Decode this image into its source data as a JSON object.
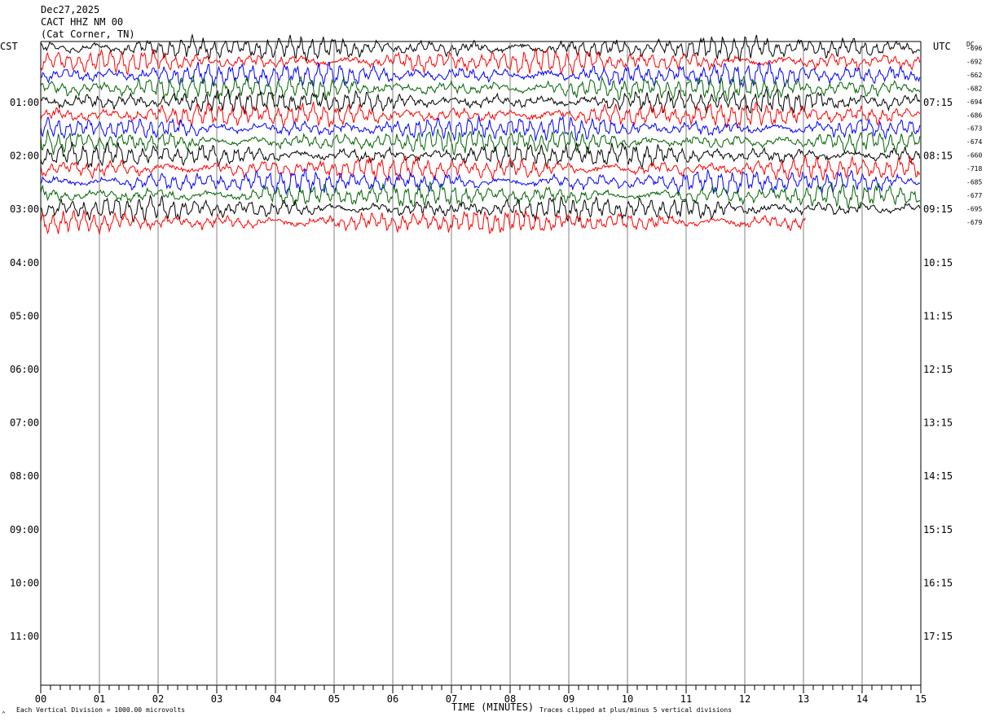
{
  "header": {
    "date": "Dec27,2025",
    "station": "CACT HHZ NM 00",
    "location": "(Cat Corner, TN)"
  },
  "left_tz": "CST",
  "right_tz": "UTC",
  "dc_label": "DC",
  "footer": {
    "left_note": "Each Vertical Division = 1000.00 microvolts",
    "x_title": "TIME (MINUTES)",
    "right_note": "Traces clipped at plus/minus 5 vertical divisions",
    "corner_mark": "^"
  },
  "chart_data": {
    "type": "line",
    "subtype": "helicorder",
    "x_axis": {
      "title": "TIME (MINUTES)",
      "range": [
        0,
        15
      ],
      "tick_labels": [
        "00",
        "01",
        "02",
        "03",
        "04",
        "05",
        "06",
        "07",
        "08",
        "09",
        "10",
        "11",
        "12",
        "13",
        "14",
        "15"
      ]
    },
    "left_hour_labels": [
      "01:00",
      "02:00",
      "03:00",
      "04:00",
      "05:00",
      "06:00",
      "07:00",
      "08:00",
      "09:00",
      "10:00",
      "11:00"
    ],
    "right_hour_labels": [
      "07:15",
      "08:15",
      "09:15",
      "10:15",
      "11:15",
      "12:15",
      "13:15",
      "14:15",
      "15:15",
      "16:15",
      "17:15"
    ],
    "trace_count": 14,
    "trace_colors": [
      "#000000",
      "#ff0000",
      "#0000ff",
      "#006400"
    ],
    "dc_offsets": [
      "-696",
      "-692",
      "-662",
      "-682",
      "-694",
      "-686",
      "-673",
      "-674",
      "-660",
      "-718",
      "-685",
      "-677",
      "-695",
      "-679"
    ],
    "amplitude_scale": "Each Vertical Division = 1000.00 microvolts",
    "clip": "plus/minus 5 vertical divisions",
    "grid": "vertical lines each minute"
  }
}
